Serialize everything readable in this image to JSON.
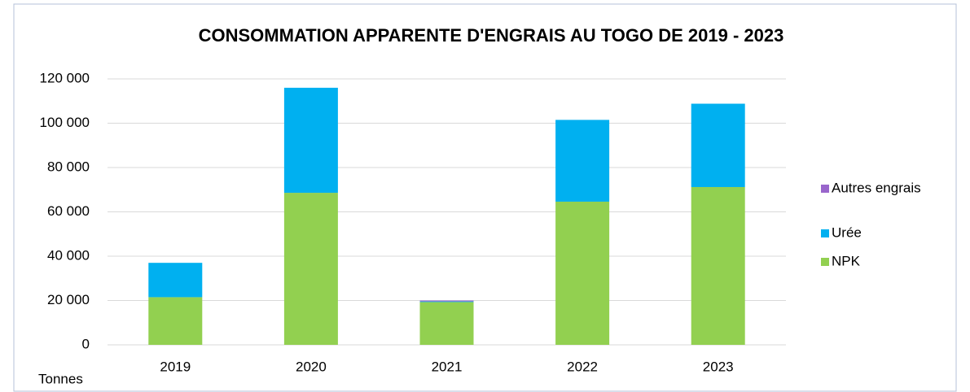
{
  "chart_data": {
    "type": "bar",
    "stacked": true,
    "title": "CONSOMMATION APPARENTE D'ENGRAIS AU TOGO DE 2019 - 2023",
    "y_label": "Tonnes",
    "categories": [
      "2019",
      "2020",
      "2021",
      "2022",
      "2023"
    ],
    "series": [
      {
        "name": "NPK",
        "color": "#92d050",
        "values": [
          21500,
          68600,
          19300,
          64600,
          71200
        ]
      },
      {
        "name": "Urée",
        "color": "#00b0f0",
        "values": [
          15500,
          47400,
          300,
          36900,
          37600
        ]
      },
      {
        "name": "Autres engrais",
        "color": "#9966cc",
        "values": [
          0,
          0,
          400,
          0,
          0
        ]
      }
    ],
    "ylim": [
      0,
      120000
    ],
    "yticks": [
      0,
      {
        "value": 20000,
        "label": "20 000"
      },
      {
        "value": 40000,
        "label": "40 000"
      },
      {
        "value": 60000,
        "label": "60 000"
      },
      {
        "value": 80000,
        "label": "80 000"
      },
      {
        "value": 100000,
        "label": "100 000"
      },
      {
        "value": 120000,
        "label": "120 000"
      }
    ],
    "grid": true,
    "legend": "right"
  }
}
